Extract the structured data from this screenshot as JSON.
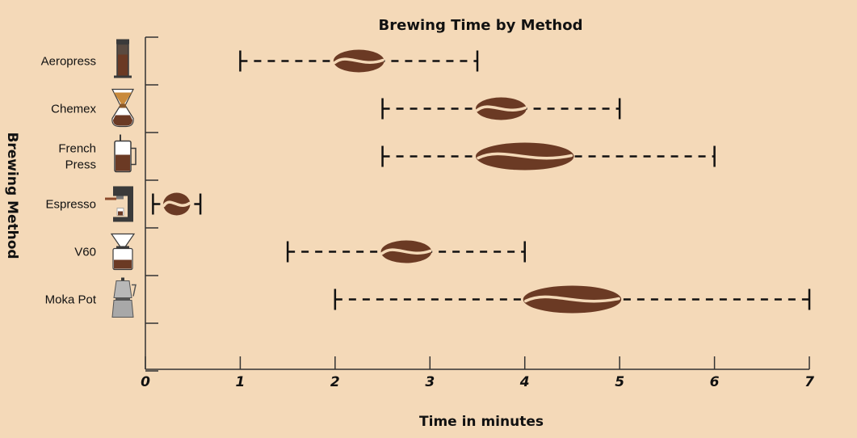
{
  "chart_data": {
    "type": "range",
    "title": "Brewing Time by Method",
    "xlabel": "Time in minutes",
    "ylabel": "Brewing Method",
    "xlim": [
      0,
      7
    ],
    "xticks": [
      "0",
      "1",
      "2",
      "3",
      "4",
      "5",
      "6",
      "7"
    ],
    "grid": false,
    "series": [
      {
        "method": "Aeropress",
        "icon": "aeropress-icon",
        "min": 1,
        "max": 3.5,
        "typical": 2.25,
        "spread": 0.5
      },
      {
        "method": "Chemex",
        "icon": "chemex-icon",
        "min": 2.5,
        "max": 5,
        "typical": 3.75,
        "spread": 0.5
      },
      {
        "method": "French Press",
        "icon": "french-press-icon",
        "min": 2.5,
        "max": 6,
        "typical": 4,
        "spread": 1
      },
      {
        "method": "Espresso",
        "icon": "espresso-machine-icon",
        "min": 0.08,
        "max": 0.58,
        "typical": 0.33,
        "spread": 0.25
      },
      {
        "method": "V60",
        "icon": "v60-icon",
        "min": 1.5,
        "max": 4,
        "typical": 2.75,
        "spread": 0.5
      },
      {
        "method": "Moka Pot",
        "icon": "moka-pot-icon",
        "min": 2,
        "max": 7,
        "typical": 4.5,
        "spread": 1
      }
    ]
  },
  "colors": {
    "background": "#f4d9b8",
    "bean": "#6b3a24",
    "bean_crease": "#f4d9b8",
    "axis": "#333333",
    "whisker": "#111111"
  }
}
